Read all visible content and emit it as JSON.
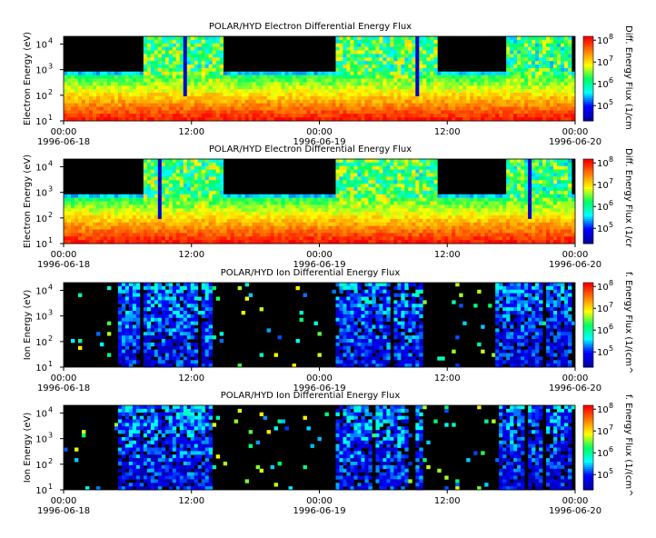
{
  "chart_data": [
    {
      "type": "heatmap",
      "title": "POLAR/HYD  Electron Differential Energy Flux",
      "ylabel": "Electron Energy (eV)",
      "colorbar_label": "Diff. Energy Flux (1/cm",
      "yscale": "log",
      "ylim": [
        10,
        20000
      ],
      "y_ticks": [
        {
          "exp": "1",
          "v": 10
        },
        {
          "exp": "2",
          "v": 100
        },
        {
          "exp": "3",
          "v": 1000
        },
        {
          "exp": "4",
          "v": 10000
        }
      ],
      "colorbar_ticks": [
        {
          "exp": "5",
          "v": 100000
        },
        {
          "exp": "6",
          "v": 1000000
        },
        {
          "exp": "7",
          "v": 10000000
        },
        {
          "exp": "8",
          "v": 100000000
        }
      ],
      "x_tick_labels": [
        "00:00",
        "12:00",
        "00:00",
        "12:00",
        "00:00"
      ],
      "x_date_labels": [
        "1996-06-18",
        "",
        "1996-06-19",
        "",
        "1996-06-20"
      ],
      "xlim": [
        "1996-06-18 00:00",
        "1996-06-20 00:00"
      ],
      "grid": false
    },
    {
      "type": "heatmap",
      "title": "POLAR/HYD  Electron Differential Energy Flux",
      "ylabel": "Electron Energy (eV)",
      "colorbar_label": "Diff. Energy Flux (1/cr",
      "yscale": "log",
      "ylim": [
        10,
        20000
      ],
      "y_ticks": [
        {
          "exp": "1",
          "v": 10
        },
        {
          "exp": "2",
          "v": 100
        },
        {
          "exp": "3",
          "v": 1000
        },
        {
          "exp": "4",
          "v": 10000
        }
      ],
      "colorbar_ticks": [
        {
          "exp": "5",
          "v": 100000
        },
        {
          "exp": "6",
          "v": 1000000
        },
        {
          "exp": "7",
          "v": 10000000
        },
        {
          "exp": "8",
          "v": 100000000
        }
      ],
      "x_tick_labels": [
        "00:00",
        "12:00",
        "00:00",
        "12:00",
        "00:00"
      ],
      "x_date_labels": [
        "1996-06-18",
        "",
        "1996-06-19",
        "",
        "1996-06-20"
      ],
      "xlim": [
        "1996-06-18 00:00",
        "1996-06-20 00:00"
      ],
      "grid": false
    },
    {
      "type": "heatmap",
      "title": "POLAR/HYD  Ion Differential Energy Flux",
      "ylabel": "Ion Energy (eV)",
      "colorbar_label": "f. Energy Flux (1/(cm^",
      "yscale": "log",
      "ylim": [
        10,
        20000
      ],
      "y_ticks": [
        {
          "exp": "1",
          "v": 10
        },
        {
          "exp": "2",
          "v": 100
        },
        {
          "exp": "3",
          "v": 1000
        },
        {
          "exp": "4",
          "v": 10000
        }
      ],
      "colorbar_ticks": [
        {
          "exp": "5",
          "v": 100000
        },
        {
          "exp": "6",
          "v": 1000000
        },
        {
          "exp": "7",
          "v": 10000000
        },
        {
          "exp": "8",
          "v": 100000000
        }
      ],
      "x_tick_labels": [
        "00:00",
        "12:00",
        "00:00",
        "12:00",
        "00:00"
      ],
      "x_date_labels": [
        "1996-06-18",
        "",
        "1996-06-19",
        "",
        "1996-06-20"
      ],
      "xlim": [
        "1996-06-18 00:00",
        "1996-06-20 00:00"
      ],
      "grid": false
    },
    {
      "type": "heatmap",
      "title": "POLAR/HYD  Ion Differential Energy Flux",
      "ylabel": "Ion Energy (eV)",
      "colorbar_label": "f. Energy Flux (1/(cm^",
      "yscale": "log",
      "ylim": [
        10,
        20000
      ],
      "y_ticks": [
        {
          "exp": "1",
          "v": 10
        },
        {
          "exp": "2",
          "v": 100
        },
        {
          "exp": "3",
          "v": 1000
        },
        {
          "exp": "4",
          "v": 10000
        }
      ],
      "colorbar_ticks": [
        {
          "exp": "5",
          "v": 100000
        },
        {
          "exp": "6",
          "v": 1000000
        },
        {
          "exp": "7",
          "v": 10000000
        },
        {
          "exp": "8",
          "v": 100000000
        }
      ],
      "x_tick_labels": [
        "00:00",
        "12:00",
        "00:00",
        "12:00",
        "00:00"
      ],
      "x_date_labels": [
        "1996-06-18",
        "",
        "1996-06-19",
        "",
        "1996-06-20"
      ],
      "xlim": [
        "1996-06-18 00:00",
        "1996-06-20 00:00"
      ],
      "grid": false
    }
  ],
  "colors": {
    "background_no_data": "#000000",
    "colorbar_stops": [
      "#0000a0",
      "#0000ff",
      "#00ffff",
      "#00ff60",
      "#ffff00",
      "#ff8000",
      "#ff0000"
    ]
  }
}
